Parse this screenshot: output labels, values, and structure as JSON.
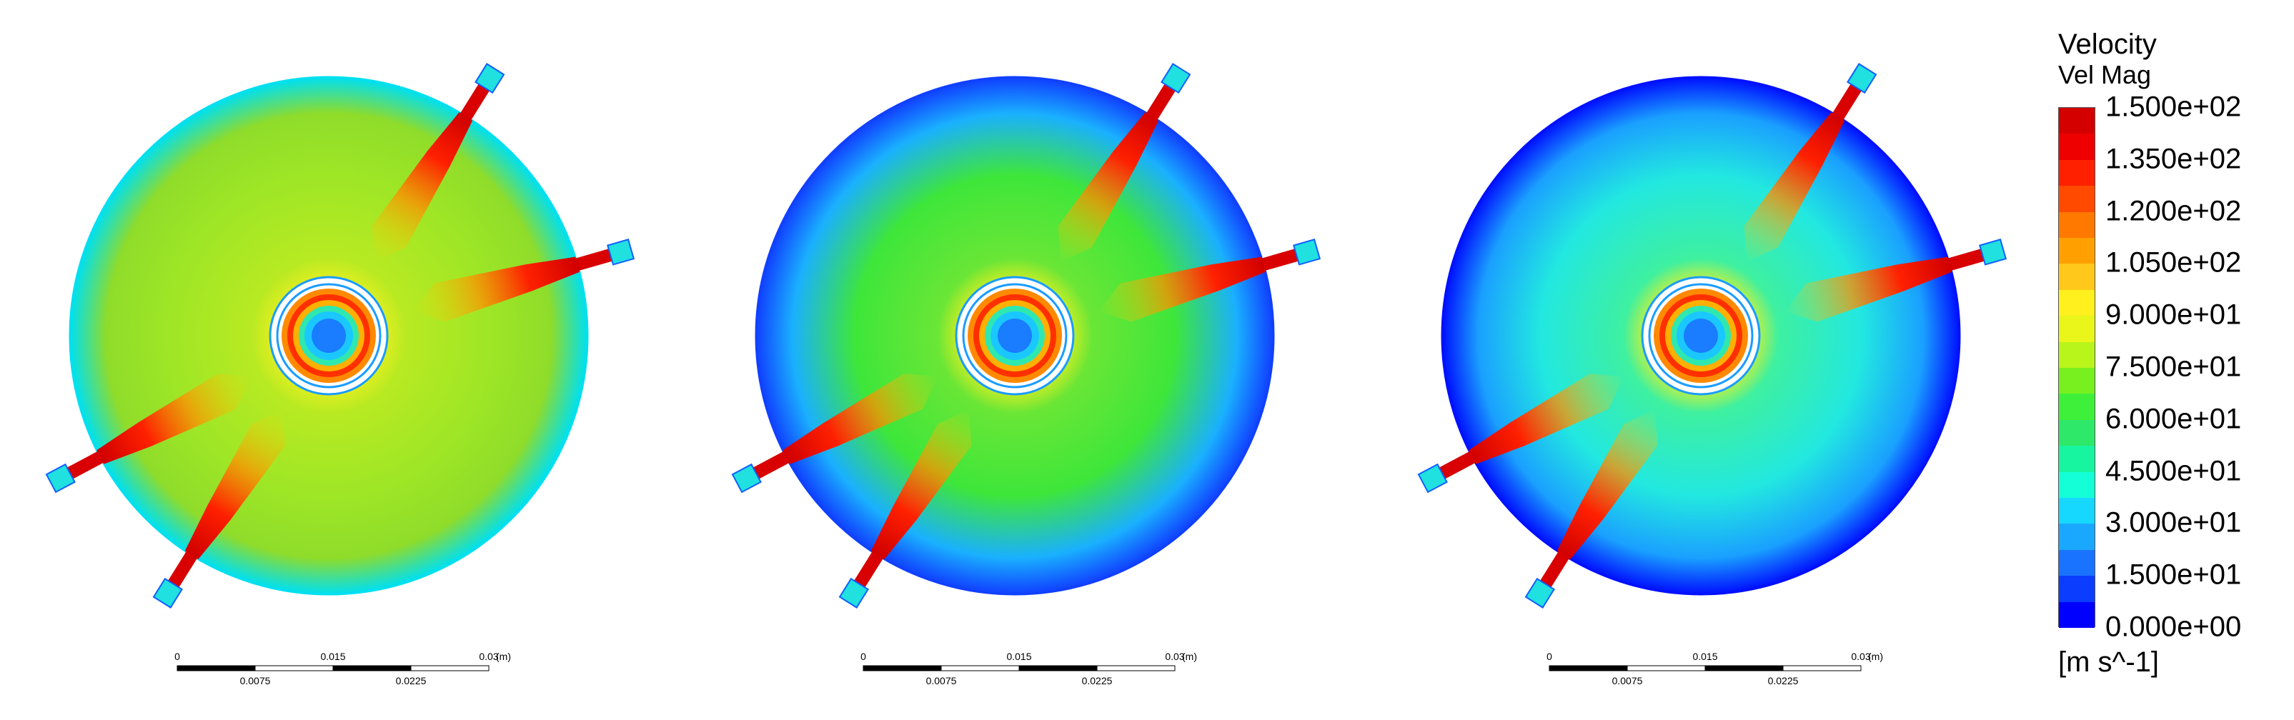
{
  "legend": {
    "title": "Velocity",
    "variable": "Vel Mag",
    "unit": "[m s^-1]",
    "ticks": [
      "1.500e+02",
      "1.350e+02",
      "1.200e+02",
      "1.050e+02",
      "9.000e+01",
      "7.500e+01",
      "6.000e+01",
      "4.500e+01",
      "3.000e+01",
      "1.500e+01",
      "0.000e+00"
    ],
    "range": [
      0,
      150
    ],
    "colors": [
      "#0000ff",
      "#0a3dff",
      "#1a73ff",
      "#1aa8ff",
      "#16d8ff",
      "#14ffd8",
      "#18f5a0",
      "#2ee86a",
      "#3ff03a",
      "#78f020",
      "#b8f51a",
      "#eaf51a",
      "#fff01e",
      "#ffc81a",
      "#ffa000",
      "#ff7800",
      "#ff4a00",
      "#ff2000",
      "#ee0000",
      "#d40000"
    ]
  },
  "scale_bar": {
    "labels": [
      "0",
      "0.015",
      "0.03",
      "(m)",
      "0.0075",
      "0.0225"
    ]
  },
  "panels": [
    {
      "name": "panel-1",
      "bg_color": "#9ee626",
      "mid_color": "#b8ea22",
      "outer_color": "#8fdc2a",
      "rim_color": "#00e0f0"
    },
    {
      "name": "panel-2",
      "bg_color": "#3ee63a",
      "mid_color": "#6ae636",
      "outer_color": "#1ab0ff",
      "rim_color": "#1040ff"
    },
    {
      "name": "panel-3",
      "bg_color": "#22e8e0",
      "mid_color": "#3ef0a0",
      "outer_color": "#1aa0ff",
      "rim_color": "#0010ff"
    }
  ]
}
